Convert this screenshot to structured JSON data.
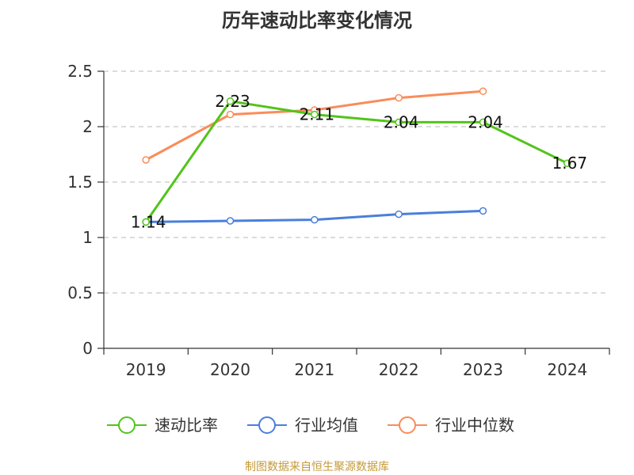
{
  "chart_data": {
    "type": "line",
    "title": "历年速动比率变化情况",
    "categories": [
      "2019",
      "2020",
      "2021",
      "2022",
      "2023",
      "2024"
    ],
    "ylim": [
      0,
      2.5
    ],
    "yticks": [
      "0",
      "0.5",
      "1",
      "1.5",
      "2",
      "2.5"
    ],
    "grid": true,
    "legend_position": "bottom",
    "series": [
      {
        "name": "速动比率",
        "color": "#52c41a",
        "values": [
          1.14,
          2.23,
          2.11,
          2.04,
          2.04,
          1.67
        ],
        "labels": [
          "1.14",
          "2.23",
          "2.11",
          "2.04",
          "2.04",
          "1.67"
        ]
      },
      {
        "name": "行业均值",
        "color": "#4a7fdb",
        "values": [
          1.14,
          1.15,
          1.16,
          1.21,
          1.24,
          null
        ]
      },
      {
        "name": "行业中位数",
        "color": "#fa8c5a",
        "values": [
          1.7,
          2.11,
          2.15,
          2.26,
          2.32,
          null
        ]
      }
    ]
  },
  "source_note": "制图数据来自恒生聚源数据库"
}
